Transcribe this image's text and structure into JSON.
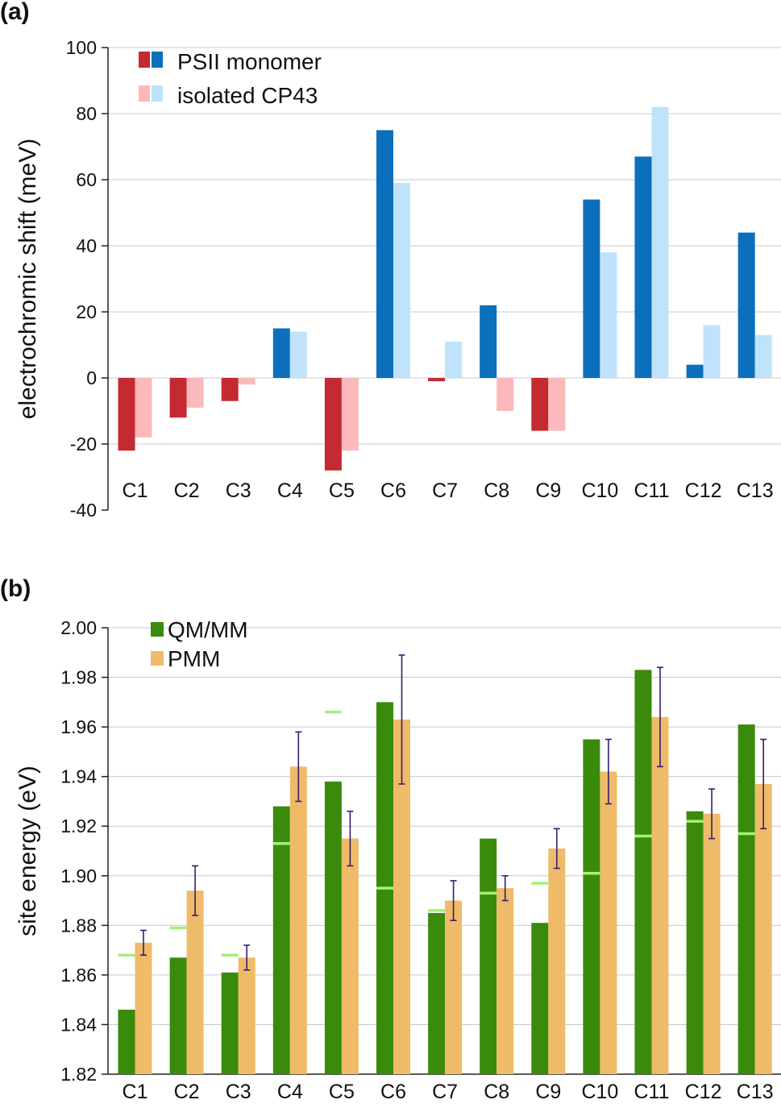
{
  "chart_data": [
    {
      "type": "bar",
      "panel_label": "(a)",
      "ylabel": "electrochromic shift (meV)",
      "ylim": [
        -40,
        100
      ],
      "yticks": [
        -40,
        -20,
        0,
        20,
        40,
        60,
        80,
        100
      ],
      "grid": true,
      "categories": [
        "C1",
        "C2",
        "C3",
        "C4",
        "C5",
        "C6",
        "C7",
        "C8",
        "C9",
        "C10",
        "C11",
        "C12",
        "C13"
      ],
      "series": [
        {
          "name": "PSII monomer",
          "values": [
            -22,
            -12,
            -7,
            15,
            -28,
            75,
            -1,
            22,
            -16,
            54,
            67,
            4,
            44
          ],
          "color_positive": "#0b6fbb",
          "color_negative": "#c42a31"
        },
        {
          "name": "isolated CP43",
          "values": [
            -18,
            -9,
            -2,
            14,
            -22,
            59,
            11,
            -10,
            -16,
            38,
            82,
            16,
            13
          ],
          "color_positive": "#bfe3fa",
          "color_negative": "#fbb9bc"
        }
      ],
      "legend_position": "top-left"
    },
    {
      "type": "bar",
      "panel_label": "(b)",
      "ylabel": "site energy (eV)",
      "ylim": [
        1.82,
        2.0
      ],
      "yticks": [
        "1.82",
        "1.84",
        "1.86",
        "1.88",
        "1.90",
        "1.92",
        "1.94",
        "1.96",
        "1.98",
        "2.00"
      ],
      "grid": true,
      "categories": [
        "C1",
        "C2",
        "C3",
        "C4",
        "C5",
        "C6",
        "C7",
        "C8",
        "C9",
        "C10",
        "C11",
        "C12",
        "C13"
      ],
      "series": [
        {
          "name": "QM/MM",
          "values": [
            1.846,
            1.867,
            1.861,
            1.928,
            1.938,
            1.97,
            1.885,
            1.915,
            1.881,
            1.955,
            1.983,
            1.926,
            1.961
          ],
          "color": "#3a8a0c",
          "markers": [
            1.868,
            1.879,
            1.868,
            1.913,
            1.966,
            1.895,
            1.886,
            1.893,
            1.897,
            1.901,
            1.916,
            1.922,
            1.917
          ],
          "marker_color": "#a6f07a"
        },
        {
          "name": "PMM",
          "values": [
            1.873,
            1.894,
            1.867,
            1.944,
            1.915,
            1.963,
            1.89,
            1.895,
            1.911,
            1.942,
            1.964,
            1.925,
            1.937
          ],
          "color": "#efbb69",
          "error_low": [
            1.868,
            1.884,
            1.862,
            1.93,
            1.904,
            1.937,
            1.882,
            1.89,
            1.903,
            1.929,
            1.944,
            1.915,
            1.919
          ],
          "error_high": [
            1.878,
            1.904,
            1.872,
            1.958,
            1.926,
            1.989,
            1.898,
            1.9,
            1.919,
            1.955,
            1.984,
            1.935,
            1.955
          ],
          "error_color": "#3b1a73"
        }
      ],
      "legend_position": "top-left"
    }
  ]
}
